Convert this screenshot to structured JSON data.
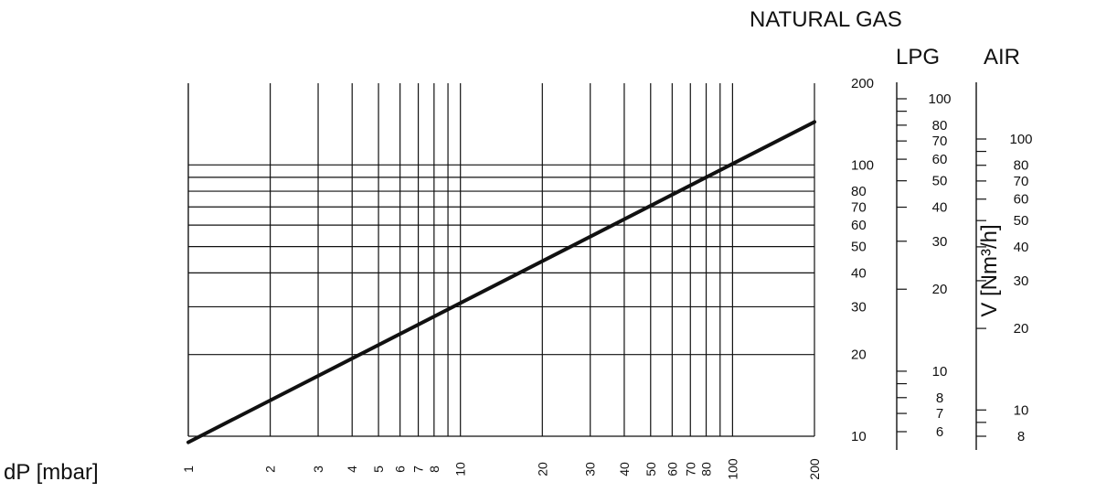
{
  "headers": {
    "natural_gas": "NATURAL GAS",
    "lpg": "LPG",
    "air": "AIR"
  },
  "axis_titles": {
    "x": "dP [mbar]",
    "y": "V [Nm³/h]"
  },
  "colors": {
    "line": "#111111",
    "grid": "#111111",
    "background": "#ffffff"
  },
  "chart_data": {
    "type": "line",
    "xlabel": "dP [mbar]",
    "ylabel": "V [Nm³/h]",
    "xscale": "log",
    "yscale": "log",
    "xlim": [
      1,
      200
    ],
    "ylim": [
      10,
      200
    ],
    "grid": true,
    "x_ticks": [
      1,
      2,
      3,
      4,
      5,
      6,
      7,
      8,
      9,
      10,
      20,
      30,
      40,
      50,
      60,
      70,
      80,
      90,
      100,
      200
    ],
    "x_tick_labels": [
      "1",
      "2",
      "3",
      "4",
      "5",
      "6",
      "7",
      "8",
      "10",
      "20",
      "30",
      "40",
      "50",
      "60",
      "70",
      "80",
      "100",
      "200"
    ],
    "x_tick_label_values": [
      1,
      2,
      3,
      4,
      5,
      6,
      7,
      8,
      10,
      20,
      30,
      40,
      50,
      60,
      70,
      80,
      100,
      200
    ],
    "y_gridlines": [
      10,
      20,
      30,
      40,
      50,
      60,
      70,
      80,
      90,
      100
    ],
    "natural_gas_ticks": [
      10,
      20,
      30,
      40,
      50,
      60,
      70,
      80,
      100,
      200
    ],
    "lpg_ticks": [
      6,
      7,
      8,
      10,
      20,
      30,
      40,
      50,
      60,
      70,
      80,
      100
    ],
    "lpg_minor_ticks": [
      9,
      90
    ],
    "air_ticks": [
      8,
      10,
      20,
      30,
      40,
      50,
      60,
      70,
      80,
      100
    ],
    "air_minor_ticks": [
      9,
      90
    ],
    "series": [
      {
        "x": [
          1,
          200
        ],
        "y": [
          9.5,
          144
        ]
      }
    ]
  }
}
